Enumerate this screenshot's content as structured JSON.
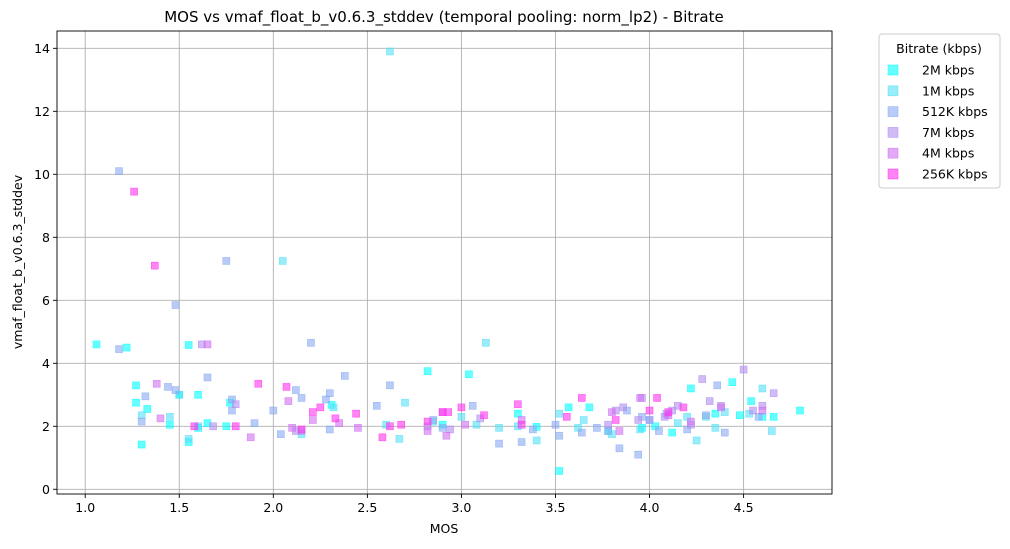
{
  "chart_data": {
    "type": "scatter",
    "title": "MOS vs vmaf_float_b_v0.6.3_stddev (temporal pooling: norm_lp2) - Bitrate",
    "xlabel": "MOS",
    "ylabel": "vmaf_float_b_v0.6.3_stddev",
    "xlim": [
      0.85,
      4.97
    ],
    "ylim": [
      -0.15,
      14.55
    ],
    "xticks": [
      "1.0",
      "1.5",
      "2.0",
      "2.5",
      "3.0",
      "3.5",
      "4.0",
      "4.5"
    ],
    "yticks": [
      "0",
      "2",
      "4",
      "6",
      "8",
      "10",
      "12",
      "14"
    ],
    "grid": true,
    "legend_title": "Bitrate (kbps)",
    "legend_position": "outside-top-right",
    "series": [
      {
        "name": "2M kbps",
        "color": "#00ffff",
        "points": [
          [
            1.06,
            4.6
          ],
          [
            1.22,
            4.5
          ],
          [
            1.27,
            3.3
          ],
          [
            1.27,
            2.75
          ],
          [
            1.3,
            1.42
          ],
          [
            1.33,
            2.55
          ],
          [
            1.45,
            2.05
          ],
          [
            1.5,
            3.0
          ],
          [
            1.55,
            1.5
          ],
          [
            1.55,
            4.58
          ],
          [
            1.6,
            3.0
          ],
          [
            1.6,
            1.95
          ],
          [
            1.65,
            2.1
          ],
          [
            1.75,
            2.0
          ],
          [
            1.77,
            2.75
          ],
          [
            2.31,
            2.68
          ],
          [
            2.82,
            3.75
          ],
          [
            2.9,
            2.05
          ],
          [
            3.04,
            3.65
          ],
          [
            3.3,
            2.4
          ],
          [
            3.4,
            1.98
          ],
          [
            3.52,
            0.58
          ],
          [
            3.57,
            2.6
          ],
          [
            3.68,
            2.6
          ],
          [
            3.78,
            1.85
          ],
          [
            3.96,
            1.95
          ],
          [
            4.03,
            2.0
          ],
          [
            4.12,
            1.8
          ],
          [
            4.22,
            3.2
          ],
          [
            4.35,
            2.4
          ],
          [
            4.44,
            3.4
          ],
          [
            4.48,
            2.35
          ],
          [
            4.54,
            2.8
          ],
          [
            4.6,
            2.3
          ],
          [
            4.66,
            2.3
          ],
          [
            4.8,
            2.5
          ]
        ]
      },
      {
        "name": "1M kbps",
        "color": "#55e0f5",
        "points": [
          [
            1.3,
            2.35
          ],
          [
            1.45,
            2.3
          ],
          [
            1.5,
            3.0
          ],
          [
            1.55,
            1.6
          ],
          [
            1.6,
            2.0
          ],
          [
            2.05,
            7.25
          ],
          [
            2.15,
            1.75
          ],
          [
            2.32,
            2.6
          ],
          [
            2.6,
            2.05
          ],
          [
            2.62,
            13.9
          ],
          [
            2.67,
            1.6
          ],
          [
            2.7,
            2.75
          ],
          [
            2.85,
            2.15
          ],
          [
            3.0,
            2.3
          ],
          [
            3.08,
            2.05
          ],
          [
            3.13,
            4.65
          ],
          [
            3.2,
            1.95
          ],
          [
            3.3,
            2.0
          ],
          [
            3.4,
            1.55
          ],
          [
            3.52,
            2.4
          ],
          [
            3.62,
            1.95
          ],
          [
            3.65,
            2.2
          ],
          [
            3.8,
            1.75
          ],
          [
            3.95,
            1.9
          ],
          [
            4.0,
            2.2
          ],
          [
            4.15,
            2.1
          ],
          [
            4.2,
            2.3
          ],
          [
            4.25,
            1.55
          ],
          [
            4.3,
            2.3
          ],
          [
            4.35,
            1.95
          ],
          [
            4.4,
            2.45
          ],
          [
            4.53,
            2.4
          ],
          [
            4.6,
            3.2
          ],
          [
            4.65,
            1.85
          ]
        ]
      },
      {
        "name": "512K kbps",
        "color": "#88aaf2",
        "points": [
          [
            1.18,
            10.1
          ],
          [
            1.18,
            4.45
          ],
          [
            1.3,
            2.15
          ],
          [
            1.32,
            2.95
          ],
          [
            1.44,
            3.25
          ],
          [
            1.48,
            5.85
          ],
          [
            1.48,
            3.15
          ],
          [
            1.65,
            3.55
          ],
          [
            1.75,
            7.25
          ],
          [
            1.78,
            2.5
          ],
          [
            1.78,
            2.85
          ],
          [
            1.9,
            2.1
          ],
          [
            2.0,
            2.5
          ],
          [
            2.04,
            1.75
          ],
          [
            2.12,
            3.15
          ],
          [
            2.15,
            2.9
          ],
          [
            2.2,
            4.65
          ],
          [
            2.28,
            2.85
          ],
          [
            2.3,
            3.05
          ],
          [
            2.3,
            1.9
          ],
          [
            2.38,
            3.6
          ],
          [
            2.55,
            2.65
          ],
          [
            2.62,
            3.3
          ],
          [
            2.85,
            2.2
          ],
          [
            2.9,
            1.95
          ],
          [
            3.06,
            2.65
          ],
          [
            3.2,
            1.45
          ],
          [
            3.32,
            1.5
          ],
          [
            3.38,
            1.9
          ],
          [
            3.5,
            2.05
          ],
          [
            3.52,
            1.7
          ],
          [
            3.64,
            1.8
          ],
          [
            3.72,
            1.95
          ],
          [
            3.78,
            1.85
          ],
          [
            3.84,
            1.3
          ],
          [
            3.88,
            2.5
          ],
          [
            3.94,
            1.1
          ],
          [
            3.96,
            2.3
          ],
          [
            4.05,
            1.85
          ],
          [
            4.09,
            2.4
          ],
          [
            4.2,
            1.9
          ],
          [
            4.3,
            2.35
          ],
          [
            4.36,
            3.3
          ],
          [
            4.4,
            1.8
          ],
          [
            4.58,
            2.3
          ]
        ]
      },
      {
        "name": "7M kbps",
        "color": "#b08df2",
        "points": [
          [
            1.62,
            4.6
          ],
          [
            1.68,
            2.0
          ],
          [
            1.8,
            2.7
          ],
          [
            2.12,
            1.85
          ],
          [
            2.15,
            1.85
          ],
          [
            2.82,
            2.0
          ],
          [
            2.94,
            1.9
          ],
          [
            3.1,
            2.25
          ],
          [
            3.78,
            2.05
          ],
          [
            3.82,
            2.5
          ],
          [
            3.86,
            2.6
          ],
          [
            3.94,
            2.2
          ],
          [
            3.96,
            2.9
          ],
          [
            4.0,
            2.2
          ],
          [
            4.08,
            2.3
          ],
          [
            4.12,
            2.5
          ],
          [
            4.15,
            2.65
          ],
          [
            4.22,
            2.05
          ],
          [
            4.28,
            3.5
          ],
          [
            4.32,
            2.8
          ],
          [
            4.38,
            2.65
          ],
          [
            4.5,
            3.8
          ],
          [
            4.55,
            2.5
          ],
          [
            4.6,
            2.65
          ],
          [
            4.66,
            3.05
          ]
        ]
      },
      {
        "name": "4M kbps",
        "color": "#d16ff0",
        "points": [
          [
            1.38,
            3.35
          ],
          [
            1.4,
            2.25
          ],
          [
            1.65,
            4.6
          ],
          [
            1.88,
            1.65
          ],
          [
            2.08,
            2.8
          ],
          [
            2.1,
            1.95
          ],
          [
            2.21,
            2.2
          ],
          [
            2.35,
            2.1
          ],
          [
            2.45,
            1.95
          ],
          [
            2.82,
            1.85
          ],
          [
            2.9,
            2.45
          ],
          [
            2.92,
            1.7
          ],
          [
            3.02,
            2.05
          ],
          [
            3.32,
            2.2
          ],
          [
            3.8,
            2.45
          ],
          [
            3.84,
            1.85
          ],
          [
            3.95,
            2.9
          ],
          [
            4.1,
            2.35
          ],
          [
            4.22,
            2.15
          ],
          [
            4.38,
            2.6
          ],
          [
            4.6,
            2.5
          ]
        ]
      },
      {
        "name": "256K kbps",
        "color": "#ff33ee",
        "points": [
          [
            1.26,
            9.45
          ],
          [
            1.37,
            7.1
          ],
          [
            1.58,
            2.0
          ],
          [
            1.8,
            2.0
          ],
          [
            1.92,
            3.35
          ],
          [
            2.07,
            3.25
          ],
          [
            2.15,
            1.9
          ],
          [
            2.21,
            2.45
          ],
          [
            2.25,
            2.6
          ],
          [
            2.33,
            2.25
          ],
          [
            2.44,
            2.4
          ],
          [
            2.58,
            1.65
          ],
          [
            2.62,
            2.0
          ],
          [
            2.68,
            2.05
          ],
          [
            2.82,
            2.15
          ],
          [
            2.9,
            2.45
          ],
          [
            2.93,
            2.45
          ],
          [
            3.0,
            2.6
          ],
          [
            3.12,
            2.35
          ],
          [
            3.3,
            2.7
          ],
          [
            3.32,
            2.05
          ],
          [
            3.56,
            2.3
          ],
          [
            3.64,
            2.9
          ],
          [
            3.82,
            2.2
          ],
          [
            4.0,
            2.5
          ],
          [
            4.04,
            2.9
          ],
          [
            4.1,
            2.45
          ],
          [
            4.18,
            2.6
          ]
        ]
      }
    ]
  }
}
